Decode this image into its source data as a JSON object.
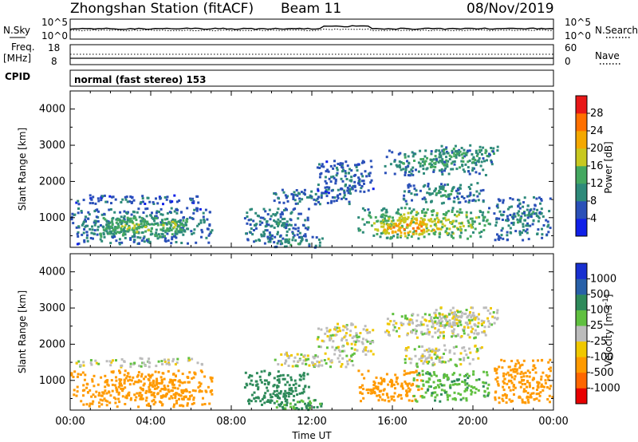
{
  "header": {
    "station": "Zhongshan Station (fitACF)",
    "beam": "Beam 11",
    "date": "08/Nov/2019"
  },
  "noise_panel": {
    "left_label": "N.Sky",
    "left_ticks": [
      "10^5",
      "10^0"
    ],
    "right_ticks": [
      "10^5",
      "10^0"
    ],
    "right_label": "N.Search"
  },
  "freq_panel": {
    "left_label_1": "Freq.",
    "left_label_2": "[MHz]",
    "left_ticks": [
      "18",
      "8"
    ],
    "right_ticks": [
      "60",
      "0"
    ],
    "right_label": "Nave"
  },
  "cpid": {
    "label": "CPID",
    "text": "normal (fast stereo) 153"
  },
  "colors": {
    "power_scale": [
      "#1020e8",
      "#2a50b8",
      "#2e8a7a",
      "#44a860",
      "#c8c820",
      "#f4a800",
      "#ff7000",
      "#e81818"
    ],
    "velocity_scale": [
      "#e80000",
      "#ff6600",
      "#ff9a00",
      "#f0c800",
      "#bcbcbc",
      "#60c040",
      "#2e8a5a",
      "#2860a8",
      "#1830d0"
    ]
  },
  "chart_data": [
    {
      "type": "heatmap",
      "parameter": "power",
      "ylabel": "Slant Range [km]",
      "xlim": [
        0,
        24
      ],
      "ylim": [
        180,
        4500
      ],
      "yticks": [
        "1000",
        "2000",
        "3000",
        "4000"
      ],
      "colorbar_label": "Power [dB]",
      "colorbar_range": [
        0,
        32
      ],
      "colorbar_ticks": [
        "4",
        "8",
        "12",
        "16",
        "20",
        "24",
        "28"
      ],
      "regions": [
        {
          "t0": 0.0,
          "t1": 7.0,
          "r0": 300,
          "r1": 1300,
          "core": 9
        },
        {
          "t0": 0.2,
          "t1": 6.5,
          "r0": 1400,
          "r1": 1650,
          "core": 5
        },
        {
          "t0": 0.5,
          "t1": 6.2,
          "r0": 500,
          "r1": 1050,
          "core": 14
        },
        {
          "t0": 4.2,
          "t1": 5.8,
          "r0": 600,
          "r1": 1000,
          "core": 16
        },
        {
          "t0": 8.6,
          "t1": 11.8,
          "r0": 300,
          "r1": 1300,
          "core": 8
        },
        {
          "t0": 9.8,
          "t1": 12.5,
          "r0": 200,
          "r1": 500,
          "core": 10
        },
        {
          "t0": 10.0,
          "t1": 14.0,
          "r0": 1400,
          "r1": 1800,
          "core": 7
        },
        {
          "t0": 12.2,
          "t1": 15.0,
          "r0": 1700,
          "r1": 2600,
          "core": 6
        },
        {
          "t0": 14.2,
          "t1": 20.8,
          "r0": 450,
          "r1": 1300,
          "core": 17
        },
        {
          "t0": 15.0,
          "t1": 18.5,
          "r0": 500,
          "r1": 1000,
          "core": 25
        },
        {
          "t0": 16.5,
          "t1": 20.5,
          "r0": 1400,
          "r1": 2000,
          "core": 9
        },
        {
          "t0": 15.5,
          "t1": 20.8,
          "r0": 2200,
          "r1": 2900,
          "core": 10
        },
        {
          "t0": 18.0,
          "t1": 21.2,
          "r0": 2500,
          "r1": 3050,
          "core": 12
        },
        {
          "t0": 21.0,
          "t1": 23.9,
          "r0": 400,
          "r1": 1600,
          "core": 8
        }
      ]
    },
    {
      "type": "heatmap",
      "parameter": "velocity",
      "ylabel": "Slant Range [km]",
      "xlabel": "Time UT",
      "xlim": [
        0,
        24
      ],
      "ylim": [
        180,
        4500
      ],
      "xticks": [
        "00:00",
        "04:00",
        "08:00",
        "12:00",
        "16:00",
        "20:00",
        "00:00"
      ],
      "yticks": [
        "1000",
        "2000",
        "3000",
        "4000"
      ],
      "colorbar_label": "Velocity [m s^-1]",
      "colorbar_ticks": [
        "1000",
        "500",
        "100",
        "25",
        "-25",
        "-100",
        "-500",
        "-1000"
      ],
      "regions": [
        {
          "t0": 0.0,
          "t1": 7.0,
          "r0": 300,
          "r1": 1300,
          "vel": -300
        },
        {
          "t0": 0.2,
          "t1": 6.5,
          "r0": 1400,
          "r1": 1650,
          "vel": 0
        },
        {
          "t0": 3.8,
          "t1": 5.8,
          "r0": 500,
          "r1": 1100,
          "vel": -400
        },
        {
          "t0": 8.6,
          "t1": 11.8,
          "r0": 300,
          "r1": 1300,
          "vel": 150
        },
        {
          "t0": 9.8,
          "t1": 12.5,
          "r0": 200,
          "r1": 500,
          "vel": 100
        },
        {
          "t0": 10.0,
          "t1": 14.0,
          "r0": 1400,
          "r1": 1800,
          "vel": 0
        },
        {
          "t0": 12.2,
          "t1": 15.0,
          "r0": 1700,
          "r1": 2600,
          "vel": 0
        },
        {
          "t0": 14.2,
          "t1": 17.5,
          "r0": 450,
          "r1": 1300,
          "vel": -400
        },
        {
          "t0": 17.0,
          "t1": 20.8,
          "r0": 450,
          "r1": 1300,
          "vel": 80
        },
        {
          "t0": 16.5,
          "t1": 20.5,
          "r0": 1400,
          "r1": 2000,
          "vel": 0
        },
        {
          "t0": 15.5,
          "t1": 20.8,
          "r0": 2200,
          "r1": 2900,
          "vel": 0
        },
        {
          "t0": 18.0,
          "t1": 21.2,
          "r0": 2500,
          "r1": 3050,
          "vel": 0
        },
        {
          "t0": 21.0,
          "t1": 23.9,
          "r0": 400,
          "r1": 1600,
          "vel": -200
        }
      ]
    }
  ]
}
